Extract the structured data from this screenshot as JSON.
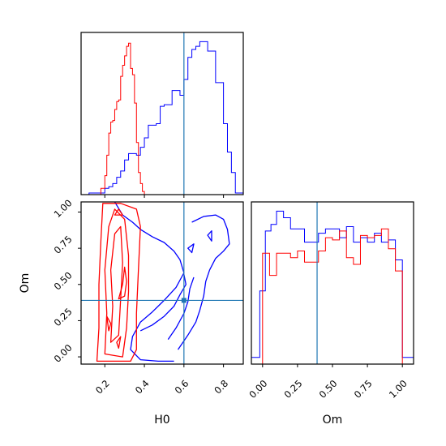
{
  "chart_data": [
    {
      "type": "histogram",
      "panel": "H0 marginal",
      "xlabel": "",
      "ylabel": "",
      "xlim": [
        0.08,
        0.9
      ],
      "xticks": [
        0.2,
        0.4,
        0.6,
        0.8
      ],
      "x_tick_labels_shown": false,
      "truth_line": {
        "x": 0.6,
        "color": "#1f77b4"
      },
      "series": [
        {
          "color": "#0000ff",
          "bin_edges": [
            0.08,
            0.12,
            0.14,
            0.16,
            0.18,
            0.2,
            0.22,
            0.24,
            0.26,
            0.28,
            0.3,
            0.32,
            0.34,
            0.36,
            0.38,
            0.4,
            0.42,
            0.44,
            0.46,
            0.48,
            0.5,
            0.52,
            0.54,
            0.56,
            0.58,
            0.6,
            0.62,
            0.64,
            0.66,
            0.68,
            0.7,
            0.72,
            0.74,
            0.76,
            0.8,
            0.82,
            0.84,
            0.86,
            0.88,
            0.9
          ],
          "counts": [
            0,
            1,
            1,
            1,
            1,
            4,
            5,
            7,
            11,
            15,
            22,
            26,
            26,
            25,
            30,
            36,
            44,
            44,
            45,
            56,
            57,
            57,
            66,
            66,
            63,
            73,
            87,
            92,
            94,
            97,
            97,
            91,
            91,
            71,
            45,
            27,
            14,
            1,
            1
          ]
        },
        {
          "color": "#ff0000",
          "bin_edges": [
            0.18,
            0.2,
            0.21,
            0.22,
            0.23,
            0.24,
            0.25,
            0.26,
            0.27,
            0.28,
            0.29,
            0.3,
            0.31,
            0.32,
            0.33,
            0.34,
            0.35,
            0.36,
            0.37,
            0.38,
            0.39,
            0.4,
            0.42
          ],
          "counts": [
            4,
            12,
            25,
            39,
            46,
            47,
            54,
            59,
            60,
            75,
            82,
            88,
            94,
            96,
            80,
            76,
            58,
            33,
            14,
            7,
            2,
            0
          ]
        }
      ]
    },
    {
      "type": "histogram",
      "panel": "Om marginal",
      "xlabel": "Om",
      "ylabel": "",
      "xlim": [
        -0.08,
        1.08
      ],
      "xticks": [
        0.0,
        0.25,
        0.5,
        0.75,
        1.0
      ],
      "x_tick_labels": [
        "0.00",
        "0.25",
        "0.50",
        "0.75",
        "1.00"
      ],
      "truth_line": {
        "x": 0.39,
        "color": "#1f77b4"
      },
      "series": [
        {
          "color": "#0000ff",
          "bin_edges": [
            -0.08,
            -0.02,
            0.02,
            0.06,
            0.1,
            0.15,
            0.2,
            0.25,
            0.3,
            0.35,
            0.4,
            0.45,
            0.5,
            0.55,
            0.6,
            0.65,
            0.7,
            0.75,
            0.8,
            0.85,
            0.9,
            0.95,
            1.0,
            1.04,
            1.08
          ],
          "counts": [
            3,
            33,
            60,
            63,
            69,
            66,
            61,
            61,
            55,
            55,
            59,
            61,
            61,
            57,
            62,
            55,
            57,
            55,
            59,
            55,
            56,
            47,
            3,
            3
          ]
        },
        {
          "color": "#ff0000",
          "bin_edges": [
            0.0,
            0.05,
            0.1,
            0.15,
            0.2,
            0.25,
            0.3,
            0.35,
            0.4,
            0.45,
            0.5,
            0.55,
            0.6,
            0.65,
            0.7,
            0.75,
            0.8,
            0.85,
            0.9,
            0.95,
            1.0
          ],
          "counts": [
            50,
            40,
            50,
            50,
            48,
            51,
            46,
            46,
            51,
            57,
            56,
            60,
            48,
            45,
            58,
            57,
            58,
            61,
            52,
            42
          ]
        }
      ]
    },
    {
      "type": "contour",
      "panel": "H0 vs Om",
      "xlabel": "H0",
      "ylabel": "Om",
      "xlim": [
        0.08,
        0.9
      ],
      "ylim": [
        -0.05,
        1.07
      ],
      "xticks": [
        0.2,
        0.4,
        0.6,
        0.8
      ],
      "x_tick_labels": [
        "0.2",
        "0.4",
        "0.6",
        "0.8"
      ],
      "yticks": [
        0.0,
        0.25,
        0.5,
        0.75,
        1.0
      ],
      "y_tick_labels": [
        "0.00",
        "0.25",
        "0.50",
        "0.75",
        "1.00"
      ],
      "truth_point": {
        "x": 0.6,
        "y": 0.39,
        "color": "#1f77b4"
      },
      "series": [
        {
          "color": "#0000ff",
          "contours": [
            [
              [
                0.25,
                1.07
              ],
              [
                0.29,
                0.98
              ],
              [
                0.34,
                0.93
              ],
              [
                0.38,
                0.88
              ],
              [
                0.44,
                0.83
              ],
              [
                0.5,
                0.79
              ],
              [
                0.55,
                0.73
              ],
              [
                0.58,
                0.67
              ],
              [
                0.6,
                0.58
              ],
              [
                0.56,
                0.48
              ],
              [
                0.5,
                0.39
              ],
              [
                0.44,
                0.31
              ],
              [
                0.38,
                0.24
              ],
              [
                0.34,
                0.14
              ],
              [
                0.33,
                0.05
              ],
              [
                0.38,
                -0.02
              ],
              [
                0.47,
                -0.03
              ],
              [
                0.55,
                -0.03
              ]
            ],
            [
              [
                0.38,
                0.18
              ],
              [
                0.44,
                0.22
              ],
              [
                0.5,
                0.28
              ],
              [
                0.55,
                0.35
              ],
              [
                0.58,
                0.43
              ],
              [
                0.61,
                0.5
              ],
              [
                0.6,
                0.57
              ]
            ],
            [
              [
                0.52,
                0.12
              ],
              [
                0.56,
                0.2
              ],
              [
                0.6,
                0.3
              ],
              [
                0.62,
                0.38
              ],
              [
                0.63,
                0.47
              ],
              [
                0.65,
                0.55
              ]
            ],
            [
              [
                0.57,
                0.05
              ],
              [
                0.62,
                0.15
              ],
              [
                0.66,
                0.24
              ],
              [
                0.68,
                0.32
              ],
              [
                0.7,
                0.42
              ],
              [
                0.71,
                0.52
              ],
              [
                0.73,
                0.6
              ],
              [
                0.76,
                0.68
              ],
              [
                0.8,
                0.73
              ],
              [
                0.83,
                0.78
              ],
              [
                0.82,
                0.88
              ],
              [
                0.8,
                0.95
              ],
              [
                0.76,
                0.98
              ],
              [
                0.7,
                0.97
              ],
              [
                0.64,
                0.93
              ]
            ],
            [
              [
                0.62,
                0.75
              ],
              [
                0.64,
                0.72
              ],
              [
                0.65,
                0.78
              ]
            ],
            [
              [
                0.72,
                0.84
              ],
              [
                0.74,
                0.8
              ],
              [
                0.74,
                0.87
              ]
            ]
          ]
        },
        {
          "color": "#ff0000",
          "contours": [
            [
              [
                0.16,
                -0.03
              ],
              [
                0.17,
                0.2
              ],
              [
                0.17,
                0.5
              ],
              [
                0.18,
                0.8
              ],
              [
                0.19,
                1.06
              ],
              [
                0.28,
                1.06
              ],
              [
                0.36,
                1.02
              ],
              [
                0.38,
                0.9
              ],
              [
                0.37,
                0.6
              ],
              [
                0.36,
                0.3
              ],
              [
                0.36,
                0.05
              ],
              [
                0.33,
                -0.03
              ]
            ],
            [
              [
                0.2,
                0.02
              ],
              [
                0.21,
                0.3
              ],
              [
                0.2,
                0.6
              ],
              [
                0.22,
                0.9
              ],
              [
                0.25,
                1.02
              ],
              [
                0.3,
                0.95
              ],
              [
                0.32,
                0.7
              ],
              [
                0.32,
                0.45
              ],
              [
                0.31,
                0.2
              ],
              [
                0.29,
                0.0
              ]
            ],
            [
              [
                0.23,
                0.1
              ],
              [
                0.24,
                0.35
              ],
              [
                0.23,
                0.6
              ],
              [
                0.25,
                0.85
              ],
              [
                0.28,
                0.9
              ],
              [
                0.29,
                0.65
              ],
              [
                0.28,
                0.4
              ],
              [
                0.27,
                0.15
              ]
            ],
            [
              [
                0.27,
                0.4
              ],
              [
                0.29,
                0.5
              ],
              [
                0.3,
                0.62
              ],
              [
                0.31,
                0.52
              ],
              [
                0.3,
                0.42
              ]
            ],
            [
              [
                0.22,
                0.18
              ],
              [
                0.23,
                0.23
              ],
              [
                0.21,
                0.28
              ]
            ],
            [
              [
                0.25,
                0.98
              ],
              [
                0.27,
                1.02
              ],
              [
                0.29,
                0.98
              ]
            ],
            [
              [
                0.26,
                0.1
              ],
              [
                0.28,
                0.14
              ],
              [
                0.27,
                0.06
              ]
            ]
          ]
        }
      ]
    }
  ]
}
